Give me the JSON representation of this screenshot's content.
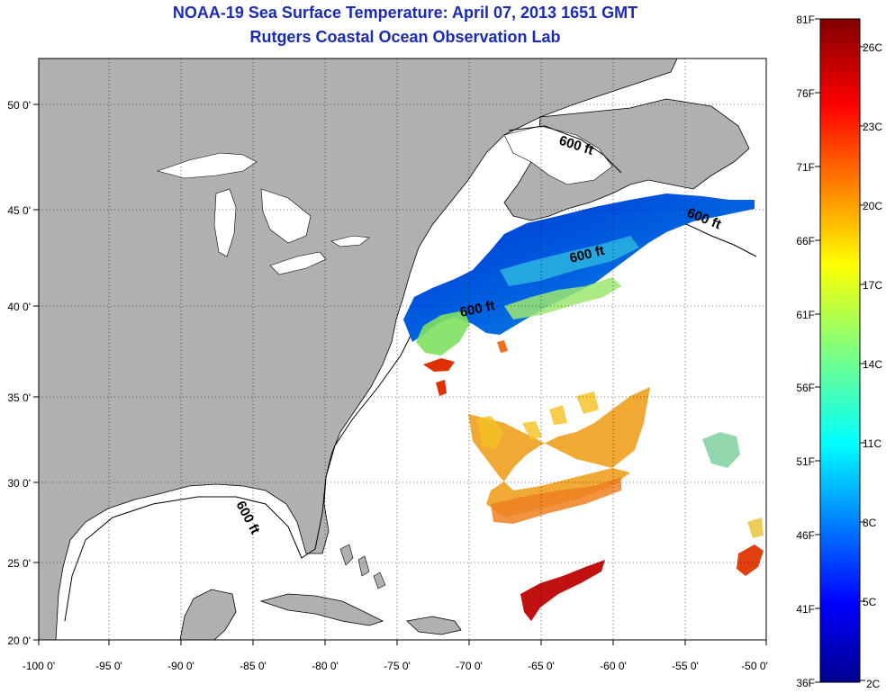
{
  "title": "NOAA-19 Sea Surface Temperature:  April 07, 2013 1651 GMT",
  "subtitle": "Rutgers Coastal Ocean Observation Lab",
  "map": {
    "lon_ticks": [
      "-100 0'",
      "-95 0'",
      "-90 0'",
      "-85 0'",
      "-80 0'",
      "-75 0'",
      "-70 0'",
      "-65 0'",
      "-60 0'",
      "-55 0'",
      "-50 0'"
    ],
    "lat_ticks": [
      "20 0'",
      "25 0'",
      "30 0'",
      "35 0'",
      "40 0'",
      "45 0'",
      "50 0'"
    ],
    "contour_label": "600 ft",
    "colors": {
      "land": "#b0b0b0",
      "water": "#ffffff"
    }
  },
  "colorbar": {
    "f_labels": [
      "81F",
      "76F",
      "71F",
      "66F",
      "61F",
      "56F",
      "51F",
      "46F",
      "41F",
      "36F"
    ],
    "c_labels": [
      "26C",
      "23C",
      "20C",
      "17C",
      "14C",
      "11C",
      "8C",
      "5C",
      "2C"
    ]
  }
}
